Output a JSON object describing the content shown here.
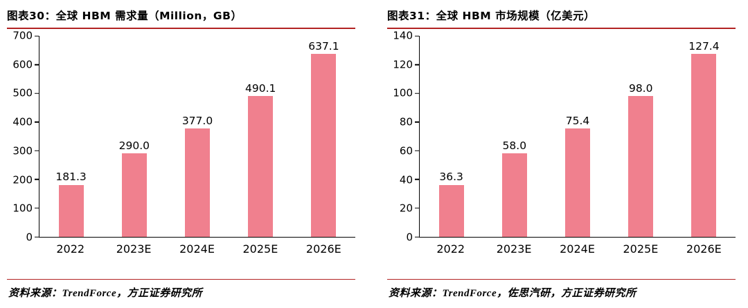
{
  "colors": {
    "bar": "#F0808E",
    "rule": "#B22222",
    "axis": "#000000"
  },
  "chart_data": [
    {
      "type": "bar",
      "title": "图表30：全球 HBM 需求量（Million，GB）",
      "categories": [
        "2022",
        "2023E",
        "2024E",
        "2025E",
        "2026E"
      ],
      "values": [
        181.3,
        290.0,
        377.0,
        490.1,
        637.1
      ],
      "value_labels": [
        "181.3",
        "290.0",
        "377.0",
        "490.1",
        "637.1"
      ],
      "ylim": [
        0,
        700
      ],
      "ytick_step": 100,
      "xlabel": "",
      "ylabel": "",
      "grid": false,
      "legend": "none",
      "source": "资料来源：TrendForce，方正证券研究所"
    },
    {
      "type": "bar",
      "title": "图表31：全球 HBM 市场规模（亿美元）",
      "categories": [
        "2022",
        "2023E",
        "2024E",
        "2025E",
        "2026E"
      ],
      "values": [
        36.3,
        58.0,
        75.4,
        98.0,
        127.4
      ],
      "value_labels": [
        "36.3",
        "58.0",
        "75.4",
        "98.0",
        "127.4"
      ],
      "ylim": [
        0,
        140
      ],
      "ytick_step": 20,
      "xlabel": "",
      "ylabel": "",
      "grid": false,
      "legend": "none",
      "source": "资料来源：TrendForce，佐思汽研，方正证券研究所"
    }
  ]
}
